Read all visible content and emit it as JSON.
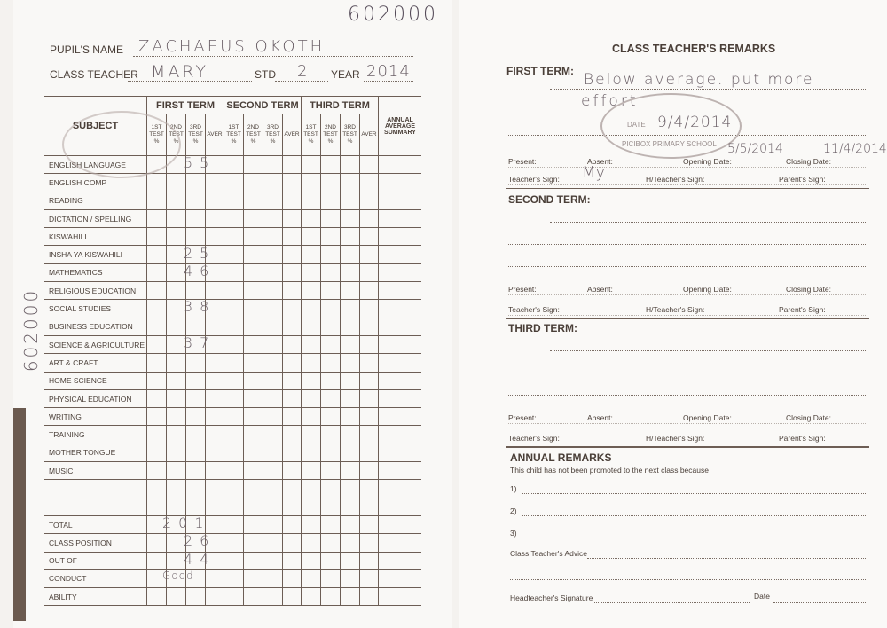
{
  "serial_number": "602000",
  "side_serial": "602000",
  "left": {
    "pupil_name_label": "PUPIL'S NAME",
    "pupil_name": "ZACHAEUS   OKOTH",
    "class_teacher_label": "CLASS TEACHER",
    "class_teacher": "MARY",
    "std_label": "STD",
    "std": "2",
    "year_label": "YEAR",
    "year": "2014",
    "table": {
      "subject_header": "SUBJECT",
      "terms": [
        "FIRST TERM",
        "SECOND TERM",
        "THIRD TERM"
      ],
      "sub_headers": [
        "1ST TEST %",
        "2ND TEST %",
        "3RD TEST %",
        "AVER"
      ],
      "annual_header": "ANNUAL AVERAGE SUMMARY",
      "rows": [
        {
          "subject": "ENGLISH LANGUAGE",
          "mark": "55"
        },
        {
          "subject": "ENGLISH COMP",
          "mark": ""
        },
        {
          "subject": "READING",
          "mark": ""
        },
        {
          "subject": "DICTATION / SPELLING",
          "mark": ""
        },
        {
          "subject": "KISWAHILI",
          "mark": ""
        },
        {
          "subject": "INSHA YA KISWAHILI",
          "mark": "25"
        },
        {
          "subject": "MATHEMATICS",
          "mark": "46"
        },
        {
          "subject": "RELIGIOUS EDUCATION",
          "mark": ""
        },
        {
          "subject": "SOCIAL STUDIES",
          "mark": "38"
        },
        {
          "subject": "BUSINESS EDUCATION",
          "mark": ""
        },
        {
          "subject": "SCIENCE & AGRICULTURE",
          "mark": "37"
        },
        {
          "subject": "ART & CRAFT",
          "mark": ""
        },
        {
          "subject": "HOME SCIENCE",
          "mark": ""
        },
        {
          "subject": "PHYSICAL EDUCATION",
          "mark": ""
        },
        {
          "subject": "WRITING",
          "mark": ""
        },
        {
          "subject": "TRAINING",
          "mark": ""
        },
        {
          "subject": "MOTHER TONGUE",
          "mark": ""
        },
        {
          "subject": "MUSIC",
          "mark": ""
        },
        {
          "subject": "",
          "mark": ""
        },
        {
          "subject": "",
          "mark": ""
        },
        {
          "subject": "TOTAL",
          "mark": "201"
        },
        {
          "subject": "CLASS POSITION",
          "mark": "26"
        },
        {
          "subject": "OUT OF",
          "mark": "44"
        },
        {
          "subject": "CONDUCT",
          "mark": "Good"
        },
        {
          "subject": "ABILITY",
          "mark": ""
        }
      ]
    }
  },
  "right": {
    "title": "CLASS TEACHER'S REMARKS",
    "first_term": {
      "label": "FIRST TERM:",
      "remark_line1": "Below average. put more",
      "remark_line2": "effort",
      "stamp_text": "PICIBOX PRIMARY SCHOOL",
      "stamp_date_label": "DATE",
      "stamp_date": "9/4/2014",
      "present_label": "Present:",
      "absent_label": "Absent:",
      "opening_label": "Opening Date:",
      "opening_date": "5/5/2014",
      "closing_label": "Closing Date:",
      "closing_date": "11/4/2014",
      "teacher_sign_label": "Teacher's Sign:",
      "teacher_sign": "My",
      "head_sign_label": "H/Teacher's Sign:",
      "parent_sign_label": "Parent's Sign:"
    },
    "second_term": {
      "label": "SECOND TERM:",
      "present_label": "Present:",
      "absent_label": "Absent:",
      "opening_label": "Opening Date:",
      "closing_label": "Closing Date:",
      "teacher_sign_label": "Teacher's Sign:",
      "head_sign_label": "H/Teacher's Sign:",
      "parent_sign_label": "Parent's Sign:"
    },
    "third_term": {
      "label": "THIRD TERM:",
      "present_label": "Present:",
      "absent_label": "Absent:",
      "opening_label": "Opening Date:",
      "closing_label": "Closing Date:",
      "teacher_sign_label": "Teacher's Sign:",
      "head_sign_label": "H/Teacher's Sign:",
      "parent_sign_label": "Parent's Sign:"
    },
    "annual": {
      "label": "ANNUAL REMARKS",
      "intro": "This child has not been promoted to the next class because",
      "items": [
        "1)",
        "2)",
        "3)"
      ],
      "advice_label": "Class Teacher's Advice",
      "head_sig_label": "Headteacher's Signature",
      "date_label": "Date"
    }
  }
}
